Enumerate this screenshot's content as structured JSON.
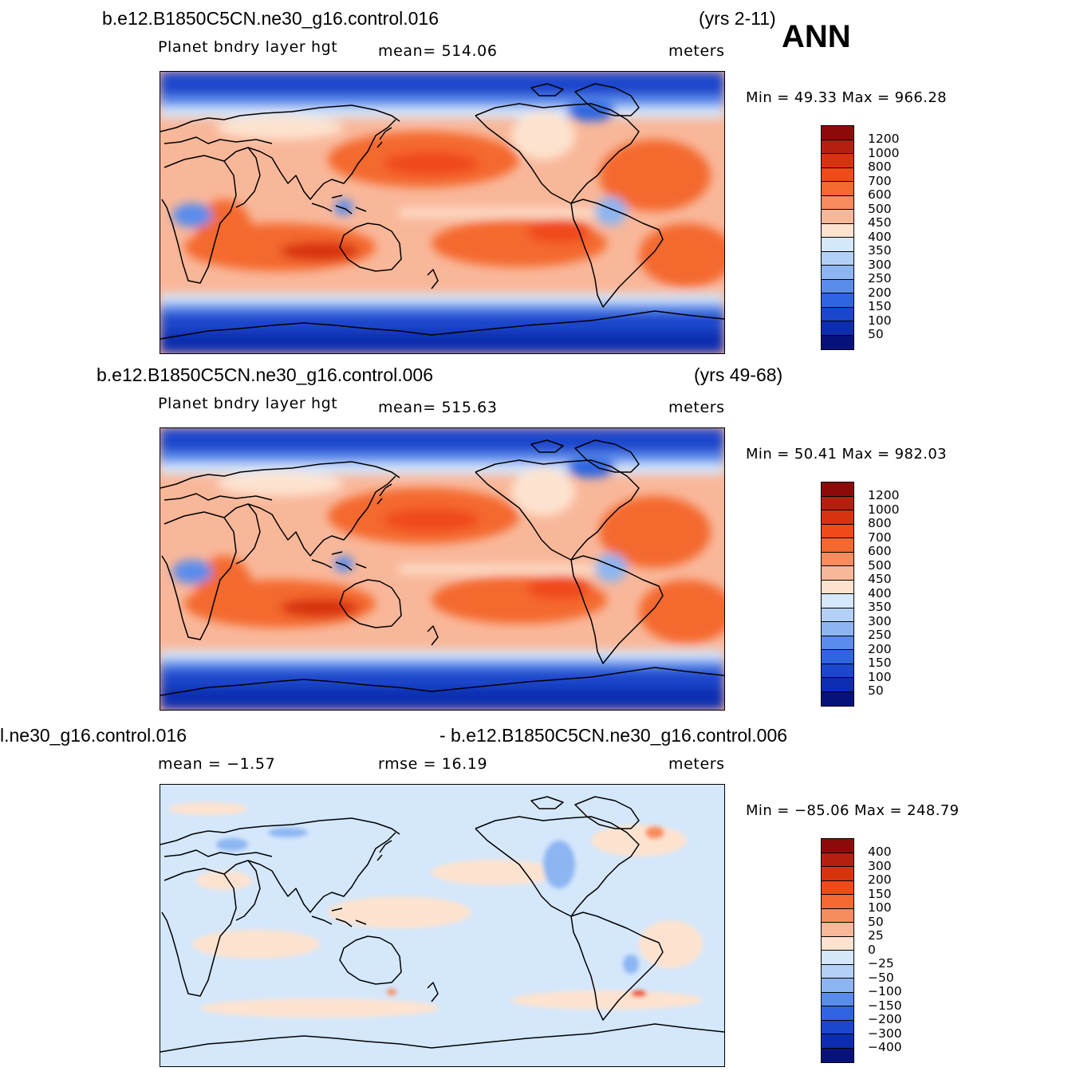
{
  "season": "ANN",
  "panels": [
    {
      "case_title": "b.e12.B1850C5CN.ne30_g16.control.016",
      "years": "(yrs 2-11)",
      "variable": "Planet  bndry  layer  hgt",
      "stat": "mean=  514.06",
      "units": "meters",
      "minmax": "Min  =    49.33  Max  =  966.28",
      "colorbar_labels": [
        "1200",
        "1000",
        "800",
        "700",
        "600",
        "500",
        "450",
        "400",
        "350",
        "300",
        "250",
        "200",
        "150",
        "100",
        "50"
      ]
    },
    {
      "case_title": "b.e12.B1850C5CN.ne30_g16.control.006",
      "years": "(yrs 49-68)",
      "variable": "Planet  bndry  layer  hgt",
      "stat": "mean=  515.63",
      "units": "meters",
      "minmax": "Min  =    50.41  Max  =  982.03",
      "colorbar_labels": [
        "1200",
        "1000",
        "800",
        "700",
        "600",
        "500",
        "450",
        "400",
        "350",
        "300",
        "250",
        "200",
        "150",
        "100",
        "50"
      ]
    },
    {
      "case_title_left": "l.ne30_g16.control.016",
      "case_title_right": "- b.e12.B1850C5CN.ne30_g16.control.006",
      "mean_stat": "mean  =    −1.57",
      "rmse_stat": "rmse  =    16.19",
      "units": "meters",
      "minmax": "Min  =  −85.06  Max  =  248.79",
      "colorbar_labels": [
        "400",
        "300",
        "200",
        "150",
        "100",
        "50",
        "25",
        "0",
        "−25",
        "−50",
        "−100",
        "−150",
        "−200",
        "−300",
        "−400"
      ]
    }
  ],
  "colors": {
    "abs_scale": [
      "#8c0a0a",
      "#b3200f",
      "#d7330f",
      "#f04a1a",
      "#f4692f",
      "#f78c5e",
      "#f9b79a",
      "#fde3cf",
      "#d5e7fb",
      "#b3d1f7",
      "#8cb5f2",
      "#5a8cec",
      "#2f65e0",
      "#1a47cc",
      "#0c2db0",
      "#06127a"
    ],
    "diff_scale": [
      "#8c0a0a",
      "#b3200f",
      "#d7330f",
      "#f04a1a",
      "#f4692f",
      "#f78c5e",
      "#f9b79a",
      "#fde3cf",
      "#d5e7fb",
      "#b3d1f7",
      "#8cb5f2",
      "#5a8cec",
      "#2f65e0",
      "#1a47cc",
      "#0c2db0",
      "#06127a"
    ]
  }
}
